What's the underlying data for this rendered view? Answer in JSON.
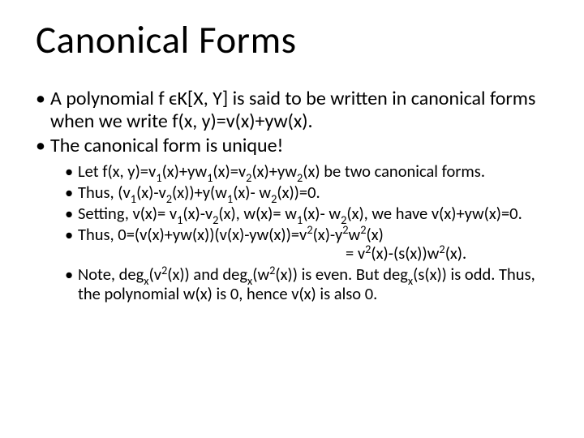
{
  "title": "Canonical Forms",
  "bullets_level1": [
    "A polynomial f ϵK[X, Y] is said to be written in canonical forms when we write f(x, y)=v(x)+yw(x).",
    "The canonical form is unique!"
  ],
  "bullets_level2_html": [
    "Let f(x, y)=v<span class='sub-num'>1</span>(x)+yw<span class='sub-num'>1</span>(x)=v<span class='sub-num'>2</span>(x)+yw<span class='sub-num'>2</span>(x) be two canonical forms.",
    "Thus, (v<span class='sub-num'>1</span>(x)-v<span class='sub-num'>2</span>(x))+y(w<span class='sub-num'>1</span>(x)- w<span class='sub-num'>2</span>(x))=0.",
    "Setting, v(x)= v<span class='sub-num'>1</span>(x)-v<span class='sub-num'>2</span>(x), w(x)= w<span class='sub-num'>1</span>(x)- w<span class='sub-num'>2</span>(x), we have v(x)+yw(x)=0.",
    "Thus, 0=(v(x)+yw(x))(v(x)-yw(x))=v<span class='sup-num'>2</span>(x)-y<span class='sup-num'>2</span>w<span class='sup-num'>2</span>(x)<span class='indent-eq'>= v<span class='sup-num'>2</span>(x)-(s(x))w<span class='sup-num'>2</span>(x).</span>",
    "Note, deg<span class='sub-num'>x</span>(v<span class='sup-num'>2</span>(x)) and deg<span class='sub-num'>x</span>(w<span class='sup-num'>2</span>(x)) is even. But deg<span class='sub-num'>x</span>(s(x)) is odd. Thus, the polynomial w(x) is 0, hence v(x) is also 0."
  ]
}
